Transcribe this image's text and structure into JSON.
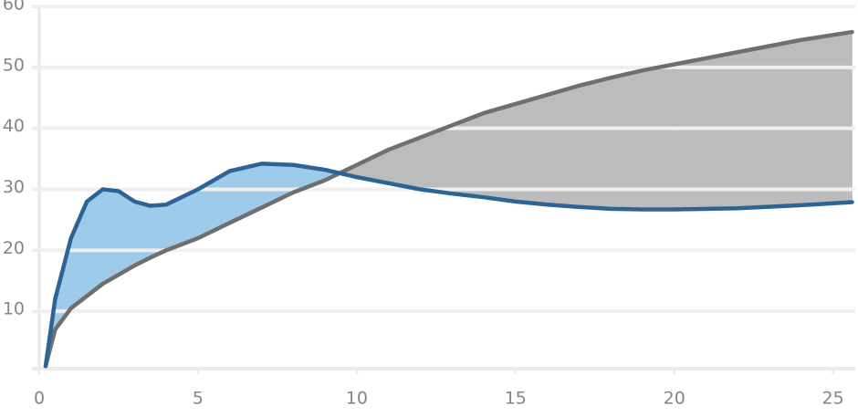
{
  "chart_data": {
    "type": "line-fill-between",
    "x": [
      0.2,
      0.5,
      1,
      1.5,
      2,
      2.5,
      3,
      3.5,
      4,
      5,
      6,
      7,
      8,
      9,
      10,
      11,
      12,
      13,
      14,
      15,
      16,
      17,
      18,
      19,
      20,
      22,
      24,
      25.6
    ],
    "series": [
      {
        "color": "#2e6395",
        "fill": "#9dcbe9",
        "values": [
          1,
          12,
          22,
          28,
          30,
          29.7,
          28,
          27.3,
          27.5,
          30,
          33,
          34.2,
          34,
          33.2,
          32,
          31,
          30,
          29.3,
          28.7,
          28,
          27.5,
          27.1,
          26.8,
          26.7,
          26.7,
          26.9,
          27.4,
          27.9
        ]
      },
      {
        "color": "#6f6f6f",
        "fill": "#bcbcbc",
        "values": [
          1,
          7,
          10.5,
          12.5,
          14.5,
          16,
          17.5,
          18.8,
          20,
          22,
          24.5,
          27,
          29.5,
          31.5,
          34,
          36.5,
          38.5,
          40.5,
          42.5,
          44,
          45.5,
          47,
          48.3,
          49.5,
          50.5,
          52.5,
          54.5,
          55.8
        ]
      }
    ],
    "xlim": [
      0,
      25.7
    ],
    "xticks": [
      0,
      5,
      10,
      15,
      20,
      25
    ],
    "ylim": [
      0,
      60
    ],
    "yticks": [
      10,
      20,
      30,
      40,
      50,
      60
    ],
    "grid": true
  }
}
